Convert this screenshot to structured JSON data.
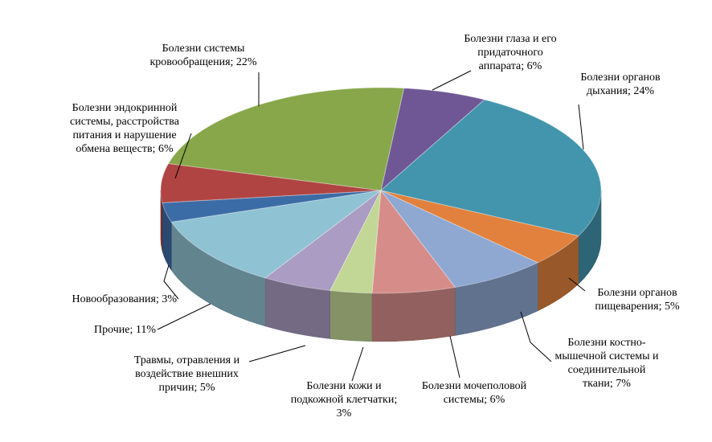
{
  "chart_data": {
    "type": "pie",
    "style": "3d",
    "slices": [
      {
        "label": "Болезни глаза и его\nпридаточного\nаппарата; 6%",
        "value": 6,
        "color": "#6f5796"
      },
      {
        "label": "Болезни органов\nдыхания; 24%",
        "value": 24,
        "color": "#4295ad"
      },
      {
        "label": "Болезни органов\nпищеварения; 5%",
        "value": 5,
        "color": "#e1813d"
      },
      {
        "label": "Болезни костно-\nмышечной системы и\nсоединительной\nткани; 7%",
        "value": 7,
        "color": "#8ea8d2"
      },
      {
        "label": "Болезни мочеполовой\nсистемы; 6%",
        "value": 6,
        "color": "#d68d8a"
      },
      {
        "label": "Болезни кожи и\nподкожной клетчатки;\n3%",
        "value": 3,
        "color": "#c2d795"
      },
      {
        "label": "Травмы, отравления и\nвоздействие внешних\nпричин; 5%",
        "value": 5,
        "color": "#aa9cc2"
      },
      {
        "label": "Прочие; 11%",
        "value": 11,
        "color": "#8fc2d3"
      },
      {
        "label": "Новообразования; 3%",
        "value": 3,
        "color": "#3c6ca6"
      },
      {
        "label": "Болезни эндокринной\nсистемы, расстройства\nпитания и нарушение\nобмена веществ; 6%",
        "value": 6,
        "color": "#b04442"
      },
      {
        "label": "Болезни системы\nкровообращения; 22%",
        "value": 22,
        "color": "#87a74a"
      }
    ]
  }
}
